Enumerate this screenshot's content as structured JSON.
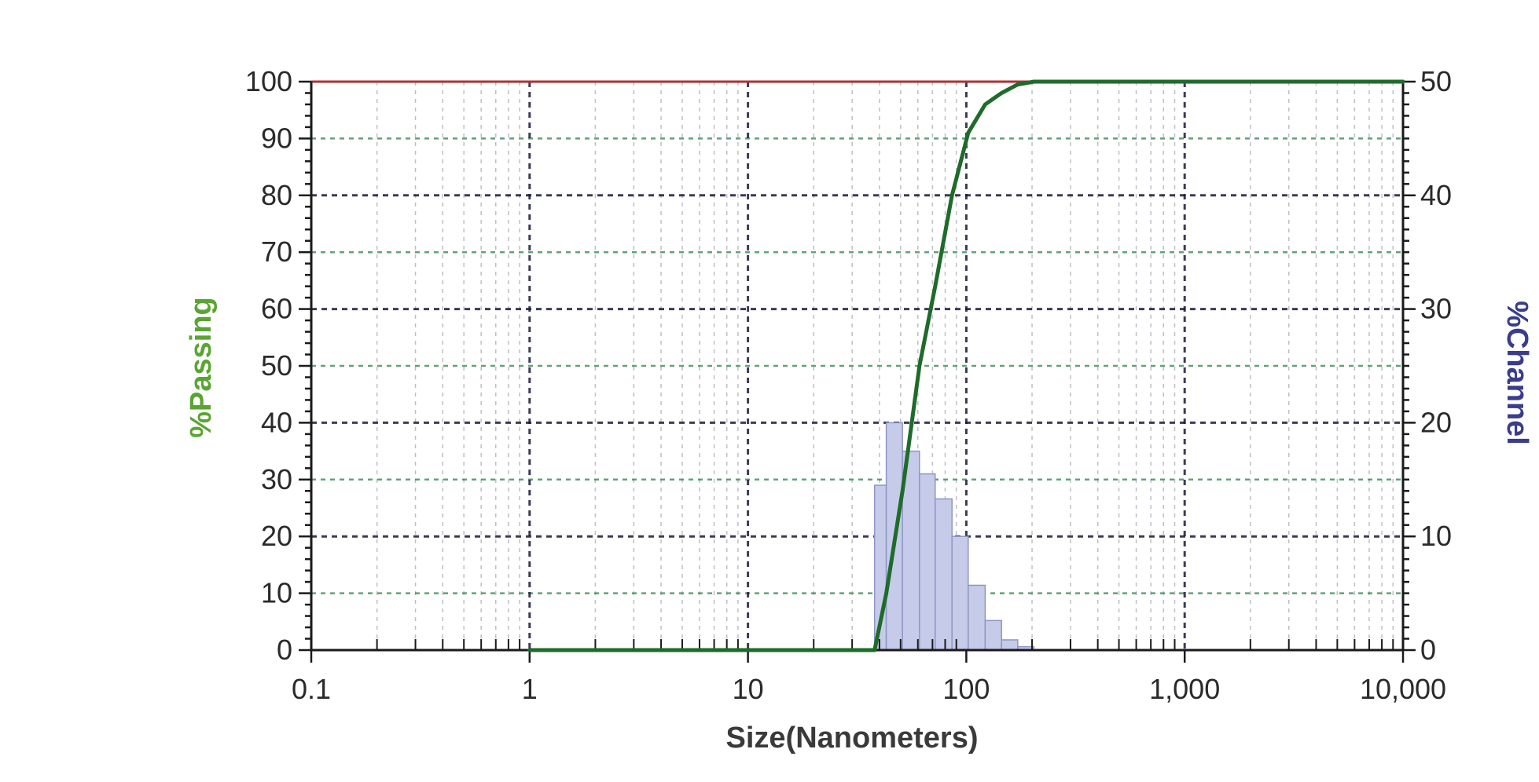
{
  "chart_data": {
    "type": "bar",
    "title": "",
    "xlabel": "Size(Nanometers)",
    "ylabel_left": "%Passing",
    "ylabel_right": "%Channel",
    "x_scale": "log",
    "xlim": [
      0.1,
      10000
    ],
    "ylim_left": [
      0,
      100
    ],
    "ylim_right": [
      0,
      50
    ],
    "grid": true,
    "colors": {
      "passing": "#1f6b2a",
      "passing_label": "#5aa532",
      "channel_fill": "#c6cbe9",
      "channel_edge": "#8e96c4",
      "channel_label": "#3a3c8c",
      "major_grid": "#1a1a3a",
      "minor_grid_h": "#3c8a5a",
      "minor_grid_v": "#8a8a9a",
      "top_border": "#b03030"
    },
    "x_ticks": [
      {
        "value": 0.1,
        "label": "0.1"
      },
      {
        "value": 1,
        "label": "1"
      },
      {
        "value": 10,
        "label": "10"
      },
      {
        "value": 100,
        "label": "100"
      },
      {
        "value": 1000,
        "label": "1,000"
      },
      {
        "value": 10000,
        "label": "10,000"
      }
    ],
    "y_left_ticks": [
      {
        "value": 0,
        "label": "0"
      },
      {
        "value": 10,
        "label": "10"
      },
      {
        "value": 20,
        "label": "20"
      },
      {
        "value": 30,
        "label": "30"
      },
      {
        "value": 40,
        "label": "40"
      },
      {
        "value": 50,
        "label": "50"
      },
      {
        "value": 60,
        "label": "60"
      },
      {
        "value": 70,
        "label": "70"
      },
      {
        "value": 80,
        "label": "80"
      },
      {
        "value": 90,
        "label": "90"
      },
      {
        "value": 100,
        "label": "100"
      }
    ],
    "y_right_ticks": [
      {
        "value": 0,
        "label": "0"
      },
      {
        "value": 10,
        "label": "10"
      },
      {
        "value": 20,
        "label": "20"
      },
      {
        "value": 30,
        "label": "30"
      },
      {
        "value": 40,
        "label": "40"
      },
      {
        "value": 50,
        "label": "50"
      }
    ],
    "channel_series": {
      "name": "%Channel",
      "bins": [
        {
          "x0": 38,
          "x1": 43,
          "value": 14.5
        },
        {
          "x0": 43,
          "x1": 51,
          "value": 20
        },
        {
          "x0": 51,
          "x1": 61,
          "value": 17.5
        },
        {
          "x0": 61,
          "x1": 72,
          "value": 15.5
        },
        {
          "x0": 72,
          "x1": 86,
          "value": 13.3
        },
        {
          "x0": 86,
          "x1": 102,
          "value": 10
        },
        {
          "x0": 102,
          "x1": 122,
          "value": 5.7
        },
        {
          "x0": 122,
          "x1": 145,
          "value": 2.6
        },
        {
          "x0": 145,
          "x1": 172,
          "value": 0.9
        },
        {
          "x0": 172,
          "x1": 204,
          "value": 0.3
        }
      ]
    },
    "passing_series": {
      "name": "%Passing",
      "x": [
        1,
        38,
        43,
        51,
        61,
        72,
        86,
        102,
        122,
        145,
        172,
        204,
        244,
        10000
      ],
      "y": [
        0,
        0,
        10,
        28,
        50,
        64,
        80,
        91,
        96,
        98,
        99.5,
        100,
        100,
        100
      ]
    }
  }
}
